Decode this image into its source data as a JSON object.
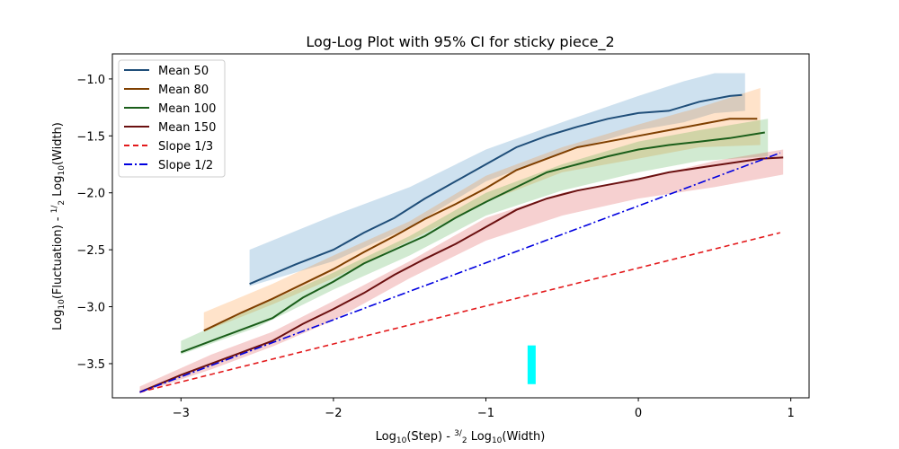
{
  "chart_data": {
    "type": "line",
    "title": "Log-Log Plot with 95% CI for sticky piece_2",
    "xlabel": {
      "pre": "Log",
      "sub": "10",
      "mid": "(Step) - ",
      "frac_num": "3",
      "frac_den": "2",
      "post": " Log",
      "sub2": "10",
      "tail": "(Width)"
    },
    "ylabel": {
      "pre": "Log",
      "sub": "10",
      "mid": "(Fluctuation) - ",
      "frac_num": "1",
      "frac_den": "2",
      "post": " Log",
      "sub2": "10",
      "tail": "(Width)"
    },
    "xlim": [
      -3.45,
      1.12
    ],
    "ylim": [
      -3.8,
      -0.78
    ],
    "x_ticks": [
      -3,
      -2,
      -1,
      0,
      1
    ],
    "x_tick_labels": [
      "−3",
      "−2",
      "−1",
      "0",
      "1"
    ],
    "y_ticks": [
      -3.5,
      -3.0,
      -2.5,
      -2.0,
      -1.5,
      -1.0
    ],
    "y_tick_labels": [
      "−3.5",
      "−3.0",
      "−2.5",
      "−2.0",
      "−1.5",
      "−1.0"
    ],
    "legend_position": "top-left",
    "series": [
      {
        "name": "Mean 50",
        "color": "#1f4e79",
        "style": "solid",
        "x": [
          -2.55,
          -2.25,
          -2.0,
          -1.8,
          -1.6,
          -1.4,
          -1.2,
          -1.0,
          -0.8,
          -0.6,
          -0.4,
          -0.2,
          0.0,
          0.2,
          0.4,
          0.6,
          0.68
        ],
        "y": [
          -2.8,
          -2.63,
          -2.5,
          -2.35,
          -2.22,
          -2.05,
          -1.9,
          -1.75,
          -1.6,
          -1.5,
          -1.42,
          -1.35,
          -1.3,
          -1.28,
          -1.2,
          -1.15,
          -1.14
        ]
      },
      {
        "name": "Mean 80",
        "color": "#7f3f00",
        "style": "solid",
        "x": [
          -2.85,
          -2.6,
          -2.4,
          -2.2,
          -2.0,
          -1.8,
          -1.6,
          -1.4,
          -1.2,
          -1.0,
          -0.8,
          -0.6,
          -0.4,
          -0.2,
          0.0,
          0.2,
          0.4,
          0.6,
          0.78
        ],
        "y": [
          -3.21,
          -3.05,
          -2.93,
          -2.8,
          -2.67,
          -2.52,
          -2.38,
          -2.23,
          -2.1,
          -1.96,
          -1.8,
          -1.7,
          -1.6,
          -1.55,
          -1.5,
          -1.45,
          -1.4,
          -1.35,
          -1.35
        ]
      },
      {
        "name": "Mean 100",
        "color": "#1a5e1a",
        "style": "solid",
        "x": [
          -3.0,
          -2.7,
          -2.4,
          -2.2,
          -2.0,
          -1.8,
          -1.6,
          -1.4,
          -1.2,
          -1.0,
          -0.8,
          -0.6,
          -0.4,
          -0.2,
          0.0,
          0.2,
          0.4,
          0.6,
          0.83
        ],
        "y": [
          -3.4,
          -3.25,
          -3.1,
          -2.92,
          -2.78,
          -2.62,
          -2.5,
          -2.38,
          -2.22,
          -2.08,
          -1.95,
          -1.82,
          -1.75,
          -1.68,
          -1.62,
          -1.58,
          -1.55,
          -1.52,
          -1.47
        ]
      },
      {
        "name": "Mean 150",
        "color": "#6b1010",
        "style": "solid",
        "x": [
          -3.27,
          -3.0,
          -2.7,
          -2.4,
          -2.2,
          -2.0,
          -1.8,
          -1.6,
          -1.4,
          -1.2,
          -1.0,
          -0.8,
          -0.6,
          -0.4,
          -0.2,
          0.0,
          0.2,
          0.4,
          0.6,
          0.8,
          0.95
        ],
        "y": [
          -3.75,
          -3.6,
          -3.45,
          -3.3,
          -3.15,
          -3.02,
          -2.88,
          -2.72,
          -2.58,
          -2.45,
          -2.3,
          -2.15,
          -2.05,
          -1.98,
          -1.93,
          -1.88,
          -1.82,
          -1.78,
          -1.74,
          -1.7,
          -1.69
        ]
      },
      {
        "name": "Slope 1/3",
        "color": "#e31a1c",
        "style": "dashed",
        "x": [
          -3.27,
          0.93
        ],
        "y": [
          -3.75,
          -2.35
        ]
      },
      {
        "name": "Slope 1/2",
        "color": "#0000e0",
        "style": "dashdot",
        "x": [
          -3.27,
          0.93
        ],
        "y": [
          -3.75,
          -1.65
        ]
      }
    ],
    "ci_bands": [
      {
        "color": "#1f77b4",
        "x": [
          -2.55,
          -2.0,
          -1.5,
          -1.0,
          -0.5,
          0.0,
          0.3,
          0.5,
          0.7
        ],
        "y_low": [
          -2.82,
          -2.6,
          -2.3,
          -1.9,
          -1.65,
          -1.45,
          -1.38,
          -1.3,
          -1.28
        ],
        "y_high": [
          -2.5,
          -2.2,
          -1.95,
          -1.62,
          -1.38,
          -1.15,
          -1.02,
          -0.95,
          -0.95
        ]
      },
      {
        "color": "#ff7f0e",
        "x": [
          -2.85,
          -2.4,
          -2.0,
          -1.5,
          -1.0,
          -0.5,
          0.0,
          0.4,
          0.8
        ],
        "y_low": [
          -3.22,
          -2.98,
          -2.75,
          -2.42,
          -2.08,
          -1.82,
          -1.7,
          -1.6,
          -1.58
        ],
        "y_high": [
          -3.05,
          -2.8,
          -2.55,
          -2.25,
          -1.85,
          -1.6,
          -1.4,
          -1.25,
          -1.08
        ]
      },
      {
        "color": "#2ca02c",
        "x": [
          -3.0,
          -2.5,
          -2.0,
          -1.5,
          -1.0,
          -0.5,
          0.0,
          0.4,
          0.85
        ],
        "y_low": [
          -3.42,
          -3.18,
          -2.85,
          -2.55,
          -2.2,
          -1.98,
          -1.82,
          -1.72,
          -1.68
        ],
        "y_high": [
          -3.3,
          -3.0,
          -2.7,
          -2.38,
          -2.0,
          -1.75,
          -1.55,
          -1.45,
          -1.35
        ]
      },
      {
        "color": "#d62728",
        "x": [
          -3.27,
          -2.8,
          -2.4,
          -2.0,
          -1.5,
          -1.0,
          -0.5,
          0.0,
          0.5,
          0.95
        ],
        "y_low": [
          -3.76,
          -3.55,
          -3.35,
          -3.12,
          -2.75,
          -2.42,
          -2.2,
          -2.05,
          -1.95,
          -1.84
        ],
        "y_high": [
          -3.7,
          -3.42,
          -3.22,
          -2.95,
          -2.6,
          -2.22,
          -2.0,
          -1.88,
          -1.72,
          -1.62
        ]
      }
    ],
    "marker": {
      "color": "#00ffff",
      "x": -0.7,
      "y_low": -3.68,
      "y_high": -3.34
    }
  }
}
